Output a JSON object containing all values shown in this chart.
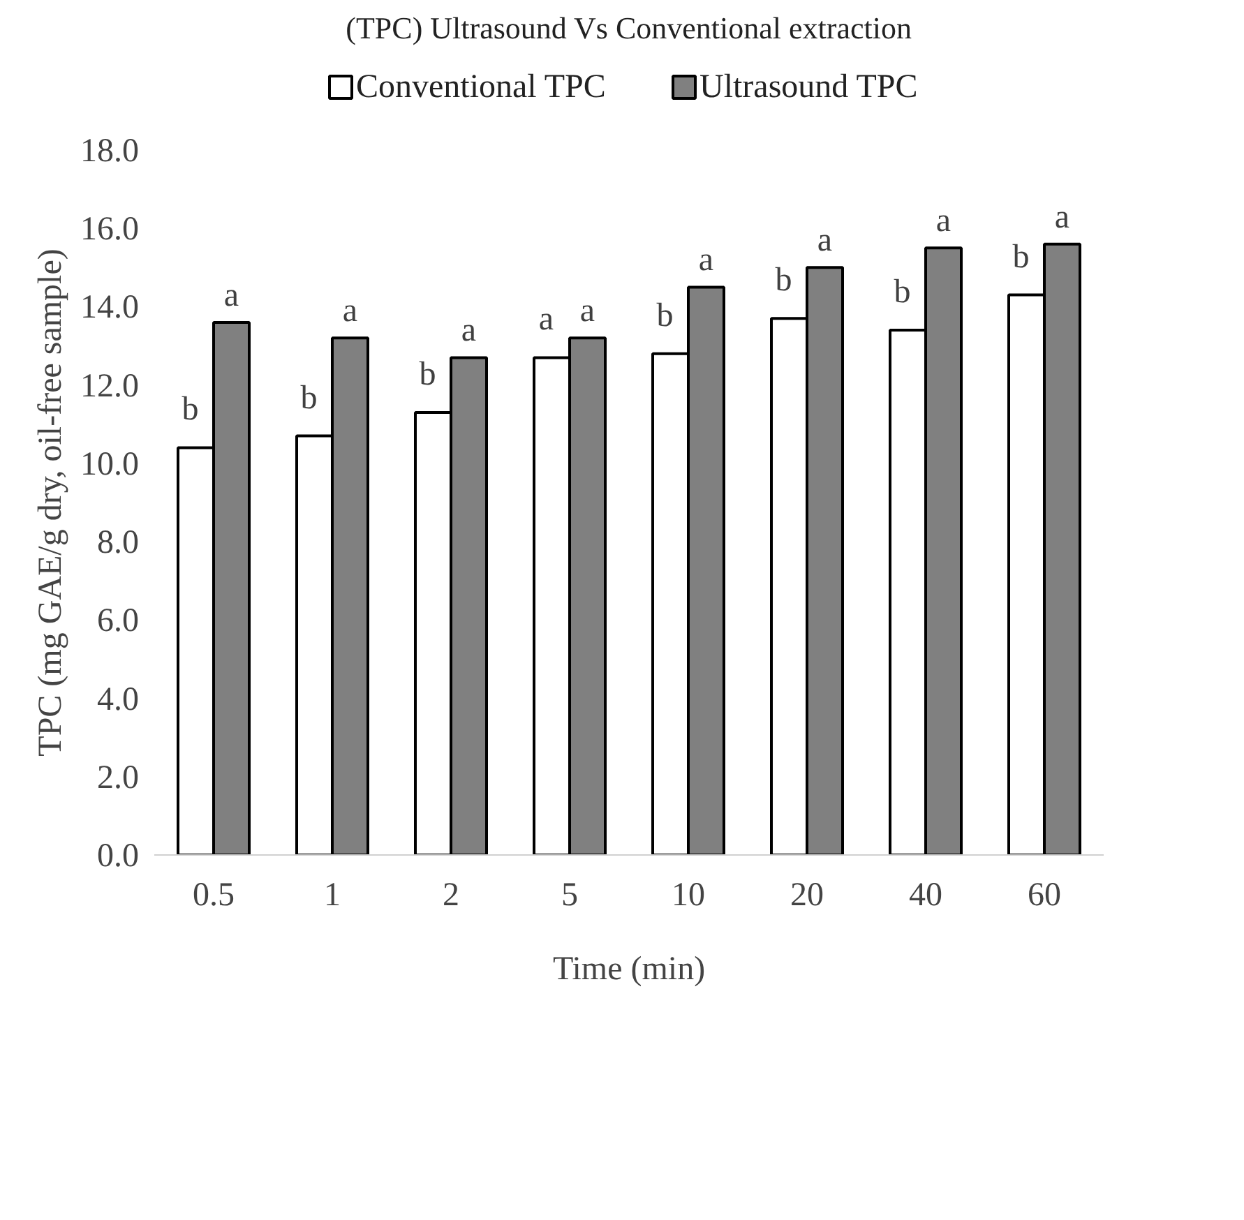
{
  "chart_data": {
    "type": "bar",
    "title": "(TPC) Ultrasound Vs Conventional extraction",
    "xlabel": "Time (min)",
    "ylabel": "TPC (mg GAE/g dry, oil-free sample)",
    "categories": [
      "0.5",
      "1",
      "2",
      "5",
      "10",
      "20",
      "40",
      "60"
    ],
    "series": [
      {
        "name": "Conventional TPC",
        "color": "#ffffff",
        "values": [
          10.4,
          10.7,
          11.3,
          12.7,
          12.8,
          13.7,
          13.4,
          14.3
        ],
        "value_labels": [
          "b",
          "b",
          "b",
          "a",
          "b",
          "b",
          "b",
          "b"
        ]
      },
      {
        "name": "Ultrasound TPC",
        "color": "#808080",
        "values": [
          13.6,
          13.2,
          12.7,
          13.2,
          14.5,
          15.0,
          15.5,
          15.6
        ],
        "value_labels": [
          "a",
          "a",
          "a",
          "a",
          "a",
          "a",
          "a",
          "a"
        ]
      }
    ],
    "ylim": [
      0,
      18
    ],
    "yticks": [
      {
        "value": 0,
        "label": "0.0"
      },
      {
        "value": 2,
        "label": "2.0"
      },
      {
        "value": 4,
        "label": "4.0"
      },
      {
        "value": 6,
        "label": "6.0"
      },
      {
        "value": 8,
        "label": "8.0"
      },
      {
        "value": 10,
        "label": "10.0"
      },
      {
        "value": 12,
        "label": "12.0"
      },
      {
        "value": 14,
        "label": "14.0"
      },
      {
        "value": 16,
        "label": "16.0"
      },
      {
        "value": 18,
        "label": "18.0"
      }
    ],
    "grid": false,
    "legend": "top"
  }
}
